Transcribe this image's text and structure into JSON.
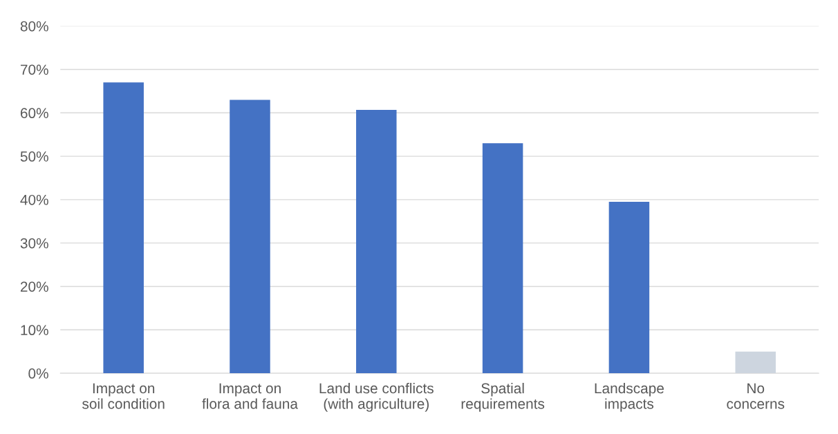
{
  "chart_data": {
    "type": "bar",
    "categories": [
      "Impact on soil condition",
      "Impact on flora and fauna",
      "Land use conflicts (with agriculture)",
      "Spatial requirements",
      "Landscape impacts",
      "No concerns"
    ],
    "values": [
      67,
      63,
      60.7,
      53,
      39.5,
      5
    ],
    "colors": [
      "#4472c4",
      "#4472c4",
      "#4472c4",
      "#4472c4",
      "#4472c4",
      "#cdd5df"
    ],
    "ylim": [
      0,
      80
    ],
    "yticks": [
      {
        "value": 0,
        "label": "0%"
      },
      {
        "value": 10,
        "label": "10%"
      },
      {
        "value": 20,
        "label": "20%"
      },
      {
        "value": 30,
        "label": "30%"
      },
      {
        "value": 40,
        "label": "40%"
      },
      {
        "value": 50,
        "label": "50%"
      },
      {
        "value": 60,
        "label": "60%"
      },
      {
        "value": 70,
        "label": "70%"
      },
      {
        "value": 80,
        "label": "80%"
      }
    ],
    "grid": "y"
  }
}
